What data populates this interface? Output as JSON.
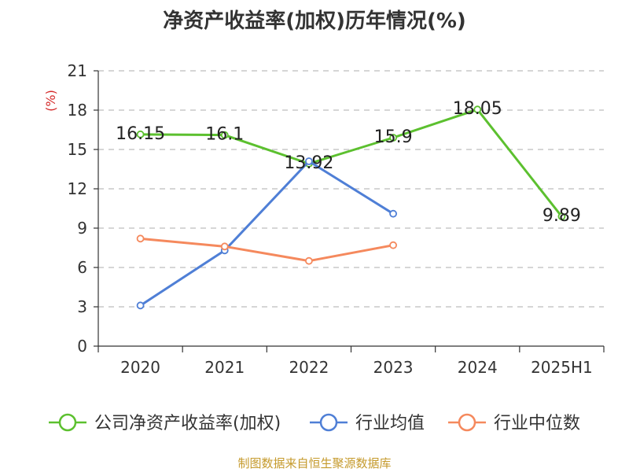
{
  "header": {
    "title": "净资产收益率(加权)历年情况(%)",
    "source": "制图数据来自恒生聚源数据库"
  },
  "chart_data": {
    "type": "line",
    "title": "净资产收益率(加权)历年情况(%)",
    "ylabel": "(%)",
    "xlabel": "",
    "categories": [
      "2020",
      "2021",
      "2022",
      "2023",
      "2024",
      "2025H1"
    ],
    "ylim": [
      0,
      21
    ],
    "yticks": [
      0,
      3,
      6,
      9,
      12,
      15,
      18,
      21
    ],
    "grid": true,
    "legend_position": "bottom",
    "series": [
      {
        "name": "公司净资产收益率(加权)",
        "color": "#5cc02f",
        "values": [
          16.15,
          16.1,
          13.92,
          15.9,
          18.05,
          9.89
        ],
        "labels": [
          "16.15",
          "16.1",
          "13.92",
          "15.9",
          "18.05",
          "9.89"
        ]
      },
      {
        "name": "行业均值",
        "color": "#4f7fd6",
        "values": [
          3.1,
          7.3,
          14.1,
          10.1,
          null,
          null
        ]
      },
      {
        "name": "行业中位数",
        "color": "#f5895d",
        "values": [
          8.2,
          7.6,
          6.5,
          7.7,
          null,
          null
        ]
      }
    ]
  }
}
